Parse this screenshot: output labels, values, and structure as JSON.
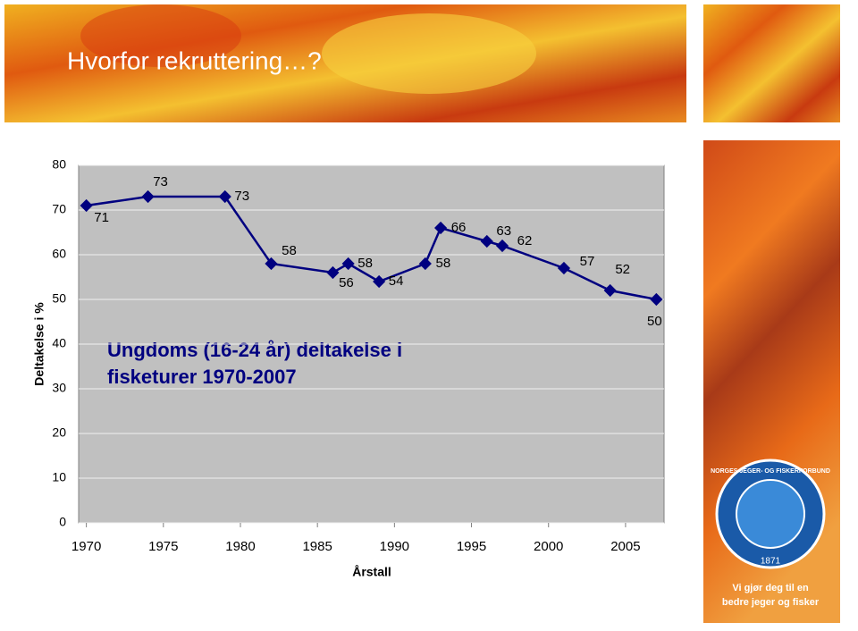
{
  "slide": {
    "title": "Hvorfor rekruttering…?",
    "logo_name": "NORGES JEGER- OG FISKERFORBUND",
    "logo_year": "1871",
    "slogan": [
      "Vi gjør deg til en",
      "bedre jeger og fisker"
    ]
  },
  "chart_data": {
    "type": "line",
    "annotation": [
      "Ungdoms (16-24 år) deltakelse i",
      "fisketurer 1970-2007"
    ],
    "x_label": "Årstall",
    "y_label": "Deltakelse i %",
    "x": [
      1970,
      1974,
      1979,
      1982,
      1986,
      1987,
      1989,
      1992,
      1993,
      1996,
      1997,
      2001,
      2004,
      2007
    ],
    "values": [
      71,
      73,
      73,
      58,
      56,
      58,
      54,
      58,
      66,
      63,
      62,
      57,
      52,
      50
    ],
    "color": "#000080",
    "xlim": [
      1969.5,
      2007.5
    ],
    "xticks": [
      1970,
      1975,
      1980,
      1985,
      1990,
      1995,
      2000,
      2005
    ],
    "ylim": [
      0,
      80
    ],
    "yticks": [
      0,
      10,
      20,
      30,
      40,
      50,
      60,
      70,
      80
    ],
    "grid": true
  }
}
